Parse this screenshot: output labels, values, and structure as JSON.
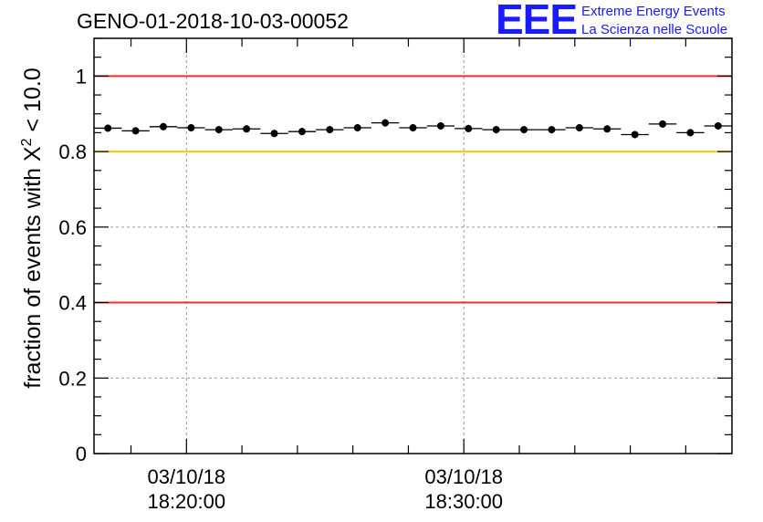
{
  "chart_data": {
    "type": "scatter",
    "title": "GENO-01-2018-10-03-00052",
    "ylabel_main": "fraction of events with X",
    "ylabel_sup": "2",
    "ylabel_tail": " < 10.0",
    "ylim": [
      0,
      1.1
    ],
    "yticks": [
      "0",
      "0.2",
      "0.4",
      "0.6",
      "0.8",
      "1"
    ],
    "ytick_values": [
      0,
      0.2,
      0.4,
      0.6,
      0.8,
      1.0
    ],
    "x_major_ticks": [
      {
        "date": "03/10/18",
        "time": "18:20:00"
      },
      {
        "date": "03/10/18",
        "time": "18:30:00"
      }
    ],
    "grid": true,
    "reference_lines": [
      {
        "y": 1.0,
        "color": "#e8322d"
      },
      {
        "y": 0.8,
        "color": "#f5c400"
      },
      {
        "y": 0.4,
        "color": "#e8322d"
      }
    ],
    "x_range_minutes": [
      "18:16:40",
      "18:39:40"
    ],
    "points": [
      {
        "t": "18:17:10",
        "y": 0.862
      },
      {
        "t": "18:18:10",
        "y": 0.855
      },
      {
        "t": "18:19:10",
        "y": 0.866
      },
      {
        "t": "18:20:10",
        "y": 0.863
      },
      {
        "t": "18:21:10",
        "y": 0.858
      },
      {
        "t": "18:22:10",
        "y": 0.86
      },
      {
        "t": "18:23:10",
        "y": 0.848
      },
      {
        "t": "18:24:10",
        "y": 0.853
      },
      {
        "t": "18:25:10",
        "y": 0.858
      },
      {
        "t": "18:26:10",
        "y": 0.863
      },
      {
        "t": "18:27:10",
        "y": 0.876
      },
      {
        "t": "18:28:10",
        "y": 0.863
      },
      {
        "t": "18:29:10",
        "y": 0.868
      },
      {
        "t": "18:30:10",
        "y": 0.861
      },
      {
        "t": "18:31:10",
        "y": 0.858
      },
      {
        "t": "18:32:10",
        "y": 0.858
      },
      {
        "t": "18:33:10",
        "y": 0.858
      },
      {
        "t": "18:34:10",
        "y": 0.863
      },
      {
        "t": "18:35:10",
        "y": 0.86
      },
      {
        "t": "18:36:10",
        "y": 0.845
      },
      {
        "t": "18:37:10",
        "y": 0.873
      },
      {
        "t": "18:38:10",
        "y": 0.85
      },
      {
        "t": "18:39:10",
        "y": 0.868
      }
    ]
  },
  "logo": {
    "mark": "EEE",
    "line1": "Extreme Energy Events",
    "line2": "La Scienza nelle Scuole",
    "color": "#1a1aff"
  }
}
